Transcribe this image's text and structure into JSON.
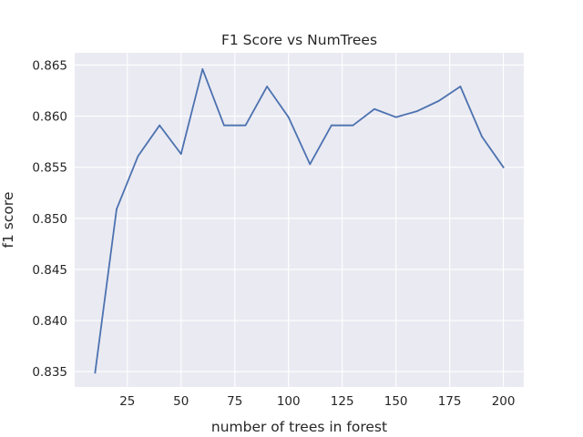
{
  "chart_data": {
    "type": "line",
    "title": "F1 Score vs NumTrees",
    "xlabel": "number of trees in forest",
    "ylabel": "f1 score",
    "xlim": [
      0.5,
      209.5
    ],
    "ylim": [
      0.8335,
      0.8662
    ],
    "xticks": [
      25,
      50,
      75,
      100,
      125,
      150,
      175,
      200
    ],
    "yticks": [
      0.835,
      0.84,
      0.845,
      0.85,
      0.855,
      0.86,
      0.865
    ],
    "ytick_labels": [
      "0.835",
      "0.840",
      "0.845",
      "0.850",
      "0.855",
      "0.860",
      "0.865"
    ],
    "grid": true,
    "series": [
      {
        "color": "#4c72b0",
        "x": [
          10,
          20,
          30,
          40,
          50,
          60,
          70,
          80,
          90,
          100,
          110,
          120,
          130,
          140,
          150,
          160,
          170,
          180,
          190,
          200
        ],
        "y": [
          0.8349,
          0.8509,
          0.8561,
          0.8591,
          0.8563,
          0.8646,
          0.8591,
          0.8591,
          0.8629,
          0.8599,
          0.8553,
          0.8591,
          0.8591,
          0.8607,
          0.8599,
          0.8605,
          0.8615,
          0.8629,
          0.858,
          0.855
        ]
      }
    ]
  },
  "colors": {
    "plot_background": "#eaeaf2",
    "grid": "#ffffff",
    "series": "#4c72b0",
    "text": "#262626"
  }
}
